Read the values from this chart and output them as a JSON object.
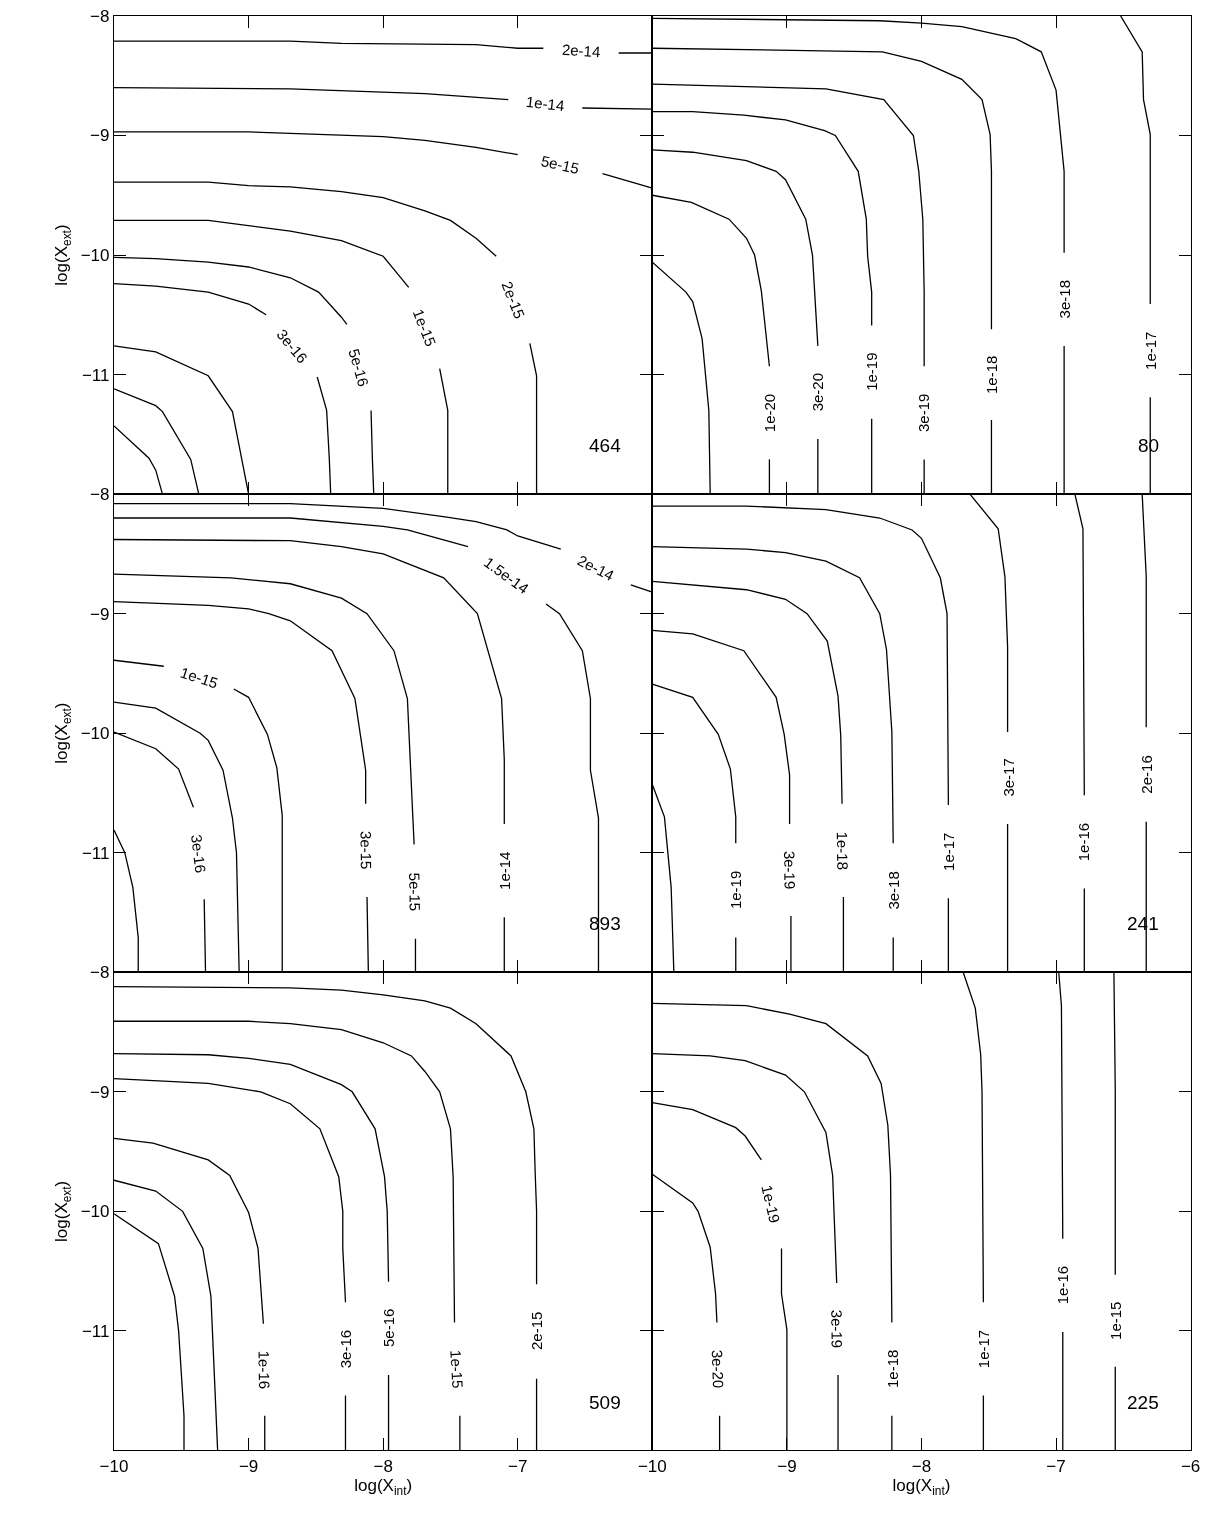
{
  "chart_data": [
    {
      "type": "line",
      "ylabel": "log(X$_{ext}$)",
      "xlim": [
        -10,
        -6
      ],
      "ylim": [
        -12,
        -8
      ],
      "xticks": [
        -10,
        -9,
        -8,
        -7
      ],
      "yticks": [
        -8,
        -9,
        -10,
        -11,
        {
          "value": -12,
          "label": null
        }
      ],
      "tick_labels": "y",
      "annotations": [
        "464"
      ],
      "series": [
        {
          "name": "2e-14",
          "color": "#000000",
          "x": [
            -10,
            -8.69,
            -8.31,
            -7.31,
            -7.0,
            -6.81,
            null,
            -6.25,
            -6.0
          ],
          "values": [
            -8.21,
            -8.21,
            -8.23,
            -8.24,
            -8.27,
            -8.27,
            null,
            -8.31,
            -8.31
          ]
        },
        {
          "name": "1e-14",
          "color": "#000000",
          "x": [
            -10,
            -8.69,
            -7.69,
            -7.07,
            null,
            -6.52,
            -6.0
          ],
          "values": [
            -8.6,
            -8.61,
            -8.65,
            -8.7,
            null,
            -8.77,
            -8.78
          ]
        },
        {
          "name": "5e-15",
          "color": "#000000",
          "x": [
            -10,
            -9.0,
            -8.0,
            -7.69,
            -7.31,
            -7.0,
            null,
            -6.37,
            -6.0
          ],
          "values": [
            -8.97,
            -8.97,
            -9.01,
            -9.04,
            -9.1,
            -9.16,
            null,
            -9.32,
            -9.44
          ]
        },
        {
          "name": "2e-15",
          "color": "#000000",
          "x": [
            -10,
            -9.3,
            -9.0,
            -8.69,
            -8.31,
            -8.0,
            -7.69,
            -7.5,
            -7.31,
            -7.16,
            null,
            -6.91,
            -6.86,
            -6.86
          ],
          "values": [
            -9.39,
            -9.39,
            -9.42,
            -9.43,
            -9.47,
            -9.52,
            -9.63,
            -9.71,
            -9.86,
            -10.01,
            null,
            -10.74,
            -11.01,
            -12
          ]
        },
        {
          "name": "1e-15",
          "color": "#000000",
          "x": [
            -10,
            -9.3,
            -8.69,
            -8.31,
            -8.0,
            -7.81,
            null,
            -7.58,
            -7.52,
            -7.52
          ],
          "values": [
            -9.71,
            -9.71,
            -9.8,
            -9.88,
            -10.01,
            -10.27,
            null,
            -10.95,
            -11.3,
            -12
          ]
        },
        {
          "name": "5e-16",
          "color": "#000000",
          "x": [
            -10,
            -9.69,
            -9.3,
            -9.0,
            -8.69,
            -8.48,
            -8.31,
            -8.27,
            null,
            -8.09,
            -8.08,
            -8.07
          ],
          "values": [
            -10.02,
            -10.03,
            -10.06,
            -10.1,
            -10.19,
            -10.31,
            -10.52,
            -10.58,
            null,
            -11.3,
            -11.71,
            -12
          ]
        },
        {
          "name": "3e-16",
          "color": "#000000",
          "x": [
            -10,
            -9.69,
            -9.3,
            -9.0,
            -8.87,
            null,
            -8.49,
            -8.42,
            -8.4,
            -8.39
          ],
          "values": [
            -10.24,
            -10.26,
            -10.31,
            -10.41,
            -10.5,
            null,
            -11.02,
            -11.3,
            -11.71,
            -12
          ]
        },
        {
          "color": "#000000",
          "x": [
            -10,
            -9.69,
            -9.3,
            -9.12,
            -9.0
          ],
          "values": [
            -10.76,
            -10.81,
            -11.01,
            -11.31,
            -12
          ]
        },
        {
          "color": "#000000",
          "x": [
            -10,
            -9.69,
            -9.64,
            -9.43,
            -9.37
          ],
          "values": [
            -11.12,
            -11.26,
            -11.31,
            -11.71,
            -12
          ]
        },
        {
          "color": "#000000",
          "x": [
            -10,
            -9.74,
            -9.69,
            -9.64
          ],
          "values": [
            -11.43,
            -11.7,
            -11.8,
            -12
          ]
        }
      ]
    },
    {
      "type": "line",
      "xlim": [
        -10,
        -6
      ],
      "ylim": [
        -12,
        -8
      ],
      "xticks": [
        -10,
        -9,
        -8,
        -7,
        -6
      ],
      "yticks": [
        {
          "value": -8,
          "label": null
        },
        {
          "value": -9,
          "label": null
        },
        {
          "value": -10,
          "label": null
        },
        {
          "value": -11,
          "label": null
        },
        {
          "value": -12,
          "label": null
        }
      ],
      "tick_labels": false,
      "annotations": [
        "80"
      ],
      "series": [
        {
          "name": "1e-17",
          "color": "#000000",
          "x": [
            -6.52,
            -6.36,
            -6.35,
            -6.3,
            -6.3,
            null,
            -6.3,
            -6.3
          ],
          "values": [
            -8.0,
            -8.3,
            -8.7,
            -8.99,
            -10.41,
            null,
            -11.19,
            -12
          ]
        },
        {
          "name": "3e-18",
          "color": "#000000",
          "x": [
            -10,
            -8.31,
            -8.0,
            -7.7,
            -7.3,
            -7.11,
            -7.0,
            -6.94,
            -6.94,
            null,
            -6.94,
            -6.94
          ],
          "values": [
            -8.02,
            -8.04,
            -8.06,
            -8.09,
            -8.19,
            -8.3,
            -8.62,
            -9.3,
            -9.98,
            null,
            -10.76,
            -12
          ]
        },
        {
          "name": "1e-18",
          "color": "#000000",
          "x": [
            -10,
            -8.29,
            -8.0,
            -7.7,
            -7.55,
            -7.49,
            -7.48,
            -7.48,
            null,
            -7.48,
            -7.48
          ],
          "values": [
            -8.27,
            -8.3,
            -8.38,
            -8.53,
            -8.7,
            -8.99,
            -9.3,
            -10.62,
            null,
            -11.38,
            -12
          ]
        },
        {
          "name": "3e-19",
          "color": "#000000",
          "x": [
            -10,
            -8.71,
            -8.28,
            -8.06,
            -8.02,
            -7.99,
            -7.98,
            -7.98,
            null,
            -7.98,
            -7.98
          ],
          "values": [
            -8.57,
            -8.61,
            -8.7,
            -9.0,
            -9.3,
            -9.7,
            -10.31,
            -10.93,
            null,
            -11.71,
            -12
          ]
        },
        {
          "name": "1e-19",
          "color": "#000000",
          "x": [
            -10,
            -9.7,
            -9.32,
            -9.01,
            -8.72,
            -8.64,
            -8.47,
            -8.41,
            -8.4,
            -8.37,
            -8.37,
            null,
            -8.37,
            -8.37
          ],
          "values": [
            -8.8,
            -8.8,
            -8.83,
            -8.87,
            -8.96,
            -9.0,
            -9.3,
            -9.7,
            -10.01,
            -10.31,
            -10.59,
            null,
            -11.37,
            -12
          ]
        },
        {
          "name": "3e-20",
          "color": "#000000",
          "x": [
            -10,
            -9.7,
            -9.3,
            -9.08,
            -9.01,
            -8.86,
            -8.81,
            -8.77,
            null,
            -8.77,
            -8.77
          ],
          "values": [
            -9.12,
            -9.14,
            -9.21,
            -9.3,
            -9.37,
            -9.7,
            -10.0,
            -10.76,
            null,
            -11.54,
            -12
          ]
        },
        {
          "name": "1e-20",
          "color": "#000000",
          "x": [
            -10,
            -9.71,
            -9.43,
            -9.3,
            -9.24,
            -9.19,
            -9.13,
            null,
            -9.13,
            -9.13
          ],
          "values": [
            -9.5,
            -9.56,
            -9.7,
            -9.86,
            -10.0,
            -10.3,
            -10.93,
            null,
            -11.71,
            -12
          ]
        },
        {
          "color": "#000000",
          "x": [
            -10,
            -9.75,
            -9.7,
            -9.63,
            -9.58,
            -9.57
          ],
          "values": [
            -10.06,
            -10.31,
            -10.39,
            -10.7,
            -11.3,
            -12
          ]
        }
      ]
    },
    {
      "type": "line",
      "ylabel": "log(X$_{ext}$)",
      "xlim": [
        -10,
        -6
      ],
      "ylim": [
        -12,
        -8
      ],
      "xticks": [
        -10,
        -9,
        -8,
        -7
      ],
      "yticks": [
        -8,
        -9,
        -10,
        -11,
        {
          "value": -12,
          "label": null
        }
      ],
      "tick_labels": "y",
      "annotations": [
        "893"
      ],
      "series": [
        {
          "name": "2e-14",
          "color": "#000000",
          "x": [
            -10,
            -8.69,
            -8.0,
            -7.54,
            -7.31,
            -7.08,
            -7.0,
            -6.68,
            null,
            -6.16,
            -6.0
          ],
          "values": [
            -8.08,
            -8.08,
            -8.12,
            -8.19,
            -8.23,
            -8.3,
            -8.35,
            -8.46,
            null,
            -8.76,
            -8.82
          ]
        },
        {
          "name": "1.5e-14",
          "color": "#000000",
          "x": [
            -10,
            -8.69,
            -8.0,
            -7.82,
            -7.37,
            null,
            -6.79,
            -6.69,
            -6.52,
            -6.46,
            -6.46,
            -6.4,
            -6.4
          ],
          "values": [
            -8.2,
            -8.2,
            -8.27,
            -8.3,
            -8.44,
            null,
            -8.92,
            -9.0,
            -9.31,
            -9.71,
            -10.31,
            -10.71,
            -12
          ]
        },
        {
          "name": "1e-14",
          "color": "#000000",
          "x": [
            -10,
            -8.69,
            -8.31,
            -8.0,
            -7.55,
            -7.3,
            -7.12,
            -7.1,
            -7.1,
            null,
            -7.1,
            -7.1
          ],
          "values": [
            -8.38,
            -8.39,
            -8.44,
            -8.5,
            -8.7,
            -9.0,
            -9.71,
            -10.22,
            -10.76,
            null,
            -11.54,
            -12
          ]
        },
        {
          "name": "5e-15",
          "color": "#000000",
          "x": [
            -10,
            -9.13,
            -8.69,
            -8.31,
            -8.12,
            -7.92,
            -7.82,
            -7.78,
            -7.77,
            null,
            -7.76,
            -7.76
          ],
          "values": [
            -8.67,
            -8.7,
            -8.75,
            -8.87,
            -9.0,
            -9.31,
            -9.71,
            -10.69,
            -10.93,
            null,
            -11.72,
            -12
          ]
        },
        {
          "name": "3e-15",
          "color": "#000000",
          "x": [
            -10,
            -9.3,
            -9.0,
            -8.85,
            -8.69,
            -8.38,
            -8.21,
            -8.13,
            -8.13,
            null,
            -8.12,
            -8.11
          ],
          "values": [
            -8.9,
            -8.93,
            -8.96,
            -9.0,
            -9.06,
            -9.31,
            -9.71,
            -10.31,
            -10.59,
            null,
            -11.37,
            -12
          ]
        },
        {
          "name": "1e-15",
          "color": "#000000",
          "x": [
            -10,
            -9.63,
            null,
            -9.11,
            -9.0,
            -8.86,
            -8.79,
            -8.75,
            -8.75
          ],
          "values": [
            -9.39,
            -9.44,
            null,
            -9.63,
            -9.7,
            -10.01,
            -10.29,
            -10.69,
            -12
          ]
        },
        {
          "color": "#000000",
          "x": [
            -10,
            -9.69,
            -9.36,
            -9.3,
            -9.19,
            -9.12,
            -9.09,
            -9.07
          ],
          "values": [
            -9.74,
            -9.79,
            -10.0,
            -10.06,
            -10.31,
            -10.71,
            -11.0,
            -12
          ]
        },
        {
          "name": "3e-16",
          "color": "#000000",
          "x": [
            -10,
            -9.69,
            -9.52,
            -9.41,
            null,
            -9.33,
            -9.32
          ],
          "values": [
            -9.99,
            -10.13,
            -10.3,
            -10.62,
            null,
            -11.39,
            -12
          ]
        },
        {
          "color": "#000000",
          "x": [
            -10,
            -9.92,
            -9.86,
            -9.82,
            -9.82
          ],
          "values": [
            -10.81,
            -11.0,
            -11.29,
            -11.71,
            -12
          ]
        }
      ]
    },
    {
      "type": "line",
      "xlim": [
        -10,
        -6
      ],
      "ylim": [
        -12,
        -8
      ],
      "xticks": [
        -10,
        -9,
        -8,
        -7,
        -6
      ],
      "yticks": [
        {
          "value": -8,
          "label": null
        },
        {
          "value": -9,
          "label": null
        },
        {
          "value": -10,
          "label": null
        },
        {
          "value": -11,
          "label": null
        },
        {
          "value": -12,
          "label": null
        }
      ],
      "tick_labels": false,
      "annotations": [
        "241"
      ],
      "series": [
        {
          "name": "2e-16",
          "color": "#000000",
          "x": [
            -6.36,
            -6.33,
            -6.33,
            null,
            -6.33,
            -6.33
          ],
          "values": [
            -8.0,
            -8.69,
            -9.95,
            null,
            -10.74,
            -12
          ]
        },
        {
          "name": "1e-16",
          "color": "#000000",
          "x": [
            -6.86,
            -6.8,
            -6.79,
            null,
            -6.79,
            -6.79
          ],
          "values": [
            -8.0,
            -8.29,
            -10.52,
            null,
            -11.3,
            -12
          ]
        },
        {
          "name": "3e-17",
          "color": "#000000",
          "x": [
            -7.64,
            -7.43,
            -7.38,
            -7.36,
            -7.36,
            null,
            -7.36,
            -7.36
          ],
          "values": [
            -8.0,
            -8.29,
            -8.69,
            -9.28,
            -9.99,
            null,
            -10.76,
            -12
          ]
        },
        {
          "name": "1e-17",
          "color": "#000000",
          "x": [
            -10,
            -9.3,
            -8.71,
            -8.31,
            -8.07,
            -8.0,
            -7.86,
            -7.81,
            -7.8,
            null,
            -7.8,
            -7.8
          ],
          "values": [
            -8.1,
            -8.1,
            -8.13,
            -8.2,
            -8.3,
            -8.37,
            -8.7,
            -9.0,
            -10.6,
            null,
            -11.38,
            -12
          ]
        },
        {
          "name": "3e-18",
          "color": "#000000",
          "x": [
            -10,
            -9.3,
            -9.01,
            -8.71,
            -8.46,
            -8.31,
            -8.26,
            -8.22,
            -8.21,
            null,
            -8.21,
            -8.21
          ],
          "values": [
            -8.44,
            -8.46,
            -8.49,
            -8.56,
            -8.7,
            -9.0,
            -9.3,
            -9.99,
            -10.92,
            null,
            -11.71,
            -12
          ]
        },
        {
          "name": "1e-18",
          "color": "#000000",
          "x": [
            -10,
            -9.3,
            -9.01,
            -8.85,
            -8.7,
            -8.62,
            -8.6,
            -8.59,
            null,
            -8.58,
            -8.58
          ],
          "values": [
            -8.73,
            -8.8,
            -8.88,
            -9.0,
            -9.23,
            -9.69,
            -10.02,
            -10.59,
            null,
            -11.37,
            -12
          ]
        },
        {
          "name": "3e-19",
          "color": "#000000",
          "x": [
            -10,
            -9.7,
            -9.32,
            -9.08,
            -9.02,
            -8.98,
            -8.98,
            null,
            -8.97,
            -8.97
          ],
          "values": [
            -9.14,
            -9.17,
            -9.31,
            -9.7,
            -10.01,
            -10.35,
            -10.76,
            null,
            -11.53,
            -12
          ]
        },
        {
          "name": "1e-19",
          "color": "#000000",
          "x": [
            -10,
            -9.7,
            -9.51,
            -9.42,
            -9.38,
            -9.38,
            null,
            -9.38,
            -9.38
          ],
          "values": [
            -9.59,
            -9.7,
            -10.01,
            -10.3,
            -10.7,
            -10.92,
            null,
            -11.71,
            -12
          ]
        },
        {
          "color": "#000000",
          "x": [
            -10,
            -9.91,
            -9.86,
            -9.84
          ],
          "values": [
            -10.43,
            -10.7,
            -11.29,
            -12
          ]
        }
      ]
    },
    {
      "type": "line",
      "xlabel": "log(X$_{int}$)",
      "ylabel": "log(X$_{ext}$)",
      "xlim": [
        -10,
        -6
      ],
      "ylim": [
        -12,
        -8
      ],
      "xticks": [
        -10,
        -9,
        -8,
        -7
      ],
      "yticks": [
        -8,
        -9,
        -10,
        -11,
        {
          "value": -12,
          "label": null
        }
      ],
      "annotations": [
        "509"
      ],
      "series": [
        {
          "name": "2e-15",
          "color": "#000000",
          "x": [
            -10,
            -8.69,
            -8.31,
            -8.0,
            -7.69,
            -7.5,
            -7.31,
            -7.05,
            -6.94,
            -6.88,
            -6.87,
            -6.86,
            -6.86,
            null,
            -6.86,
            -6.86
          ],
          "values": [
            -8.12,
            -8.13,
            -8.15,
            -8.19,
            -8.24,
            -8.3,
            -8.43,
            -8.7,
            -9.0,
            -9.31,
            -9.69,
            -10.0,
            -10.61,
            null,
            -11.4,
            -12
          ]
        },
        {
          "name": "1e-15",
          "color": "#000000",
          "x": [
            -10,
            -9.0,
            -8.69,
            -8.31,
            -8.0,
            -7.79,
            -7.69,
            -7.58,
            -7.5,
            -7.48,
            -7.47,
            null,
            -7.43,
            -7.43
          ],
          "values": [
            -8.41,
            -8.41,
            -8.43,
            -8.48,
            -8.59,
            -8.7,
            -8.83,
            -9.0,
            -9.31,
            -9.71,
            -10.93,
            null,
            -11.71,
            -12
          ]
        },
        {
          "name": "5e-16",
          "color": "#000000",
          "x": [
            -10,
            -9.3,
            -9.0,
            -8.69,
            -8.31,
            -8.23,
            -8.06,
            -7.99,
            -7.97,
            -7.96,
            null,
            -7.96,
            -7.96
          ],
          "values": [
            -8.68,
            -8.69,
            -8.72,
            -8.77,
            -8.94,
            -9.0,
            -9.31,
            -9.71,
            -10.0,
            -10.59,
            null,
            -11.37,
            -12
          ]
        },
        {
          "name": "3e-16",
          "color": "#000000",
          "x": [
            -10,
            -9.3,
            -8.91,
            -8.69,
            -8.47,
            -8.33,
            -8.3,
            -8.3,
            -8.28,
            null,
            -8.28,
            -8.28
          ],
          "values": [
            -8.89,
            -8.93,
            -9.0,
            -9.1,
            -9.31,
            -9.71,
            -10.0,
            -10.31,
            -10.76,
            null,
            -11.54,
            -12
          ]
        },
        {
          "name": "1e-16",
          "color": "#000000",
          "x": [
            -10,
            -9.71,
            -9.3,
            -9.14,
            -9.0,
            -8.93,
            -8.89,
            null,
            -8.88,
            -8.88
          ],
          "values": [
            -9.39,
            -9.43,
            -9.57,
            -9.7,
            -10.01,
            -10.31,
            -10.94,
            null,
            -11.71,
            -12
          ]
        },
        {
          "color": "#000000",
          "x": [
            -10,
            -9.69,
            -9.49,
            -9.34,
            -9.28,
            -9.23
          ],
          "values": [
            -9.74,
            -9.83,
            -10.0,
            -10.31,
            -10.71,
            -12
          ]
        },
        {
          "color": "#000000",
          "x": [
            -10,
            -9.67,
            -9.55,
            -9.52,
            -9.48,
            -9.48
          ],
          "values": [
            -10.02,
            -10.27,
            -10.71,
            -11.0,
            -11.71,
            -12
          ]
        }
      ]
    },
    {
      "type": "line",
      "xlabel": "log(X$_{int}$)",
      "xlim": [
        -10,
        -6
      ],
      "ylim": [
        -12,
        -8
      ],
      "xticks": [
        -10,
        -9,
        -8,
        -7,
        -6
      ],
      "yticks": [
        {
          "value": -8,
          "label": null
        },
        {
          "value": -9,
          "label": null
        },
        {
          "value": -10,
          "label": null
        },
        {
          "value": -11,
          "label": null
        },
        {
          "value": -12,
          "label": null
        }
      ],
      "tick_labels": "x",
      "annotations": [
        "225"
      ],
      "series": [
        {
          "name": "1e-15",
          "color": "#000000",
          "x": [
            -6.57,
            -6.56,
            -6.56,
            null,
            -6.56,
            -6.56
          ],
          "values": [
            -8.0,
            -8.99,
            -10.53,
            null,
            -11.3,
            -12
          ]
        },
        {
          "name": "1e-16",
          "color": "#000000",
          "x": [
            -6.98,
            -6.96,
            -6.95,
            null,
            -6.95,
            -6.95
          ],
          "values": [
            -8.0,
            -8.28,
            -10.23,
            null,
            -11.01,
            -12
          ]
        },
        {
          "name": "1e-17",
          "color": "#000000",
          "x": [
            -7.69,
            -7.6,
            -7.56,
            -7.55,
            -7.54,
            null,
            -7.54,
            -7.54
          ],
          "values": [
            -8.0,
            -8.3,
            -8.69,
            -9.0,
            -10.76,
            null,
            -11.54,
            -12
          ]
        },
        {
          "name": "1e-18",
          "color": "#000000",
          "x": [
            -10,
            -9.3,
            -8.98,
            -8.71,
            -8.4,
            -8.3,
            -8.25,
            -8.23,
            -8.22,
            null,
            -8.22,
            -8.22
          ],
          "values": [
            -8.26,
            -8.28,
            -8.35,
            -8.43,
            -8.7,
            -8.93,
            -9.28,
            -9.7,
            -10.93,
            null,
            -11.71,
            -12
          ]
        },
        {
          "name": "3e-19",
          "color": "#000000",
          "x": [
            -10,
            -9.57,
            -9.31,
            -9.01,
            -8.87,
            -8.71,
            -8.66,
            -8.64,
            -8.63,
            null,
            -8.62,
            -8.62
          ],
          "values": [
            -8.68,
            -8.7,
            -8.74,
            -8.86,
            -9.0,
            -9.34,
            -9.7,
            -10.3,
            -10.6,
            null,
            -11.37,
            -12
          ]
        },
        {
          "name": "1e-19",
          "color": "#000000",
          "x": [
            -10,
            -9.7,
            -9.38,
            -9.31,
            -9.19,
            null,
            -9.04,
            -9.04,
            -9.0,
            -9.0
          ],
          "values": [
            -9.09,
            -9.15,
            -9.3,
            -9.37,
            -9.57,
            null,
            -10.31,
            -10.69,
            -10.99,
            -12
          ]
        },
        {
          "name": "3e-20",
          "color": "#000000",
          "x": [
            -10,
            -9.7,
            -9.66,
            -9.57,
            -9.53,
            -9.52,
            null,
            -9.5,
            -9.5
          ],
          "values": [
            -9.69,
            -9.93,
            -10.0,
            -10.3,
            -10.69,
            -10.93,
            null,
            -11.71,
            -12
          ]
        }
      ]
    }
  ]
}
